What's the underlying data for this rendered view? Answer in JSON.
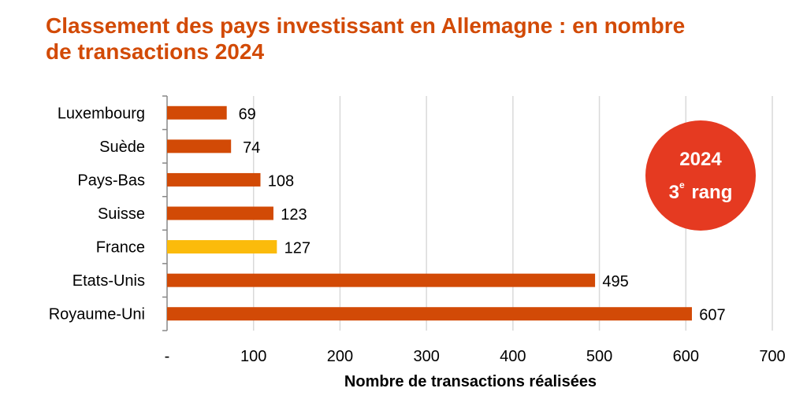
{
  "title": "Classement des pays investissant en Allemagne : en nombre de transactions 2024",
  "badge": {
    "year": "2024",
    "rank_number": "3",
    "rank_suffix": "e",
    "rank_word": "rang",
    "color": "#e53a21"
  },
  "chart_data": {
    "type": "bar",
    "orientation": "horizontal",
    "categories": [
      "Luxembourg",
      "Suède",
      "Pays-Bas",
      "Suisse",
      "France",
      "Etats-Unis",
      "Royaume-Uni"
    ],
    "values": [
      69,
      74,
      108,
      123,
      127,
      495,
      607
    ],
    "data_labels": [
      "69",
      "74",
      "108",
      "123",
      "127",
      "495",
      "607"
    ],
    "highlight_category": "France",
    "colors": {
      "default": "#d24a06",
      "highlight": "#fbbb0b",
      "title": "#d24a06"
    },
    "xlabel": "Nombre de transactions réalisées",
    "xlim": [
      0,
      700
    ],
    "xticks": [
      "-",
      "100",
      "200",
      "300",
      "400",
      "500",
      "600",
      "700"
    ],
    "grid": true
  }
}
